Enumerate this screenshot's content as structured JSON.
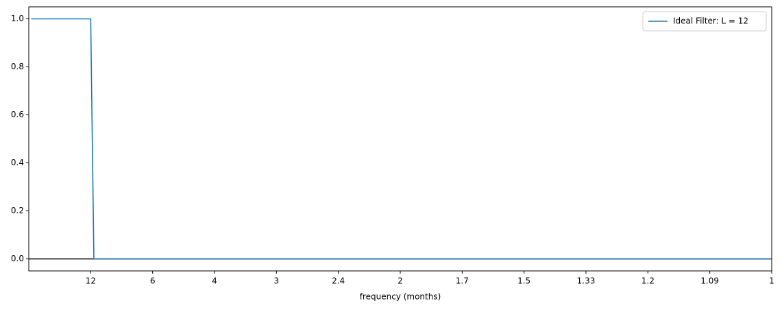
{
  "chart_data": {
    "type": "line",
    "x_label": "frequency (months)",
    "xlim": [
      0,
      1
    ],
    "ylim": [
      -0.05,
      1.05
    ],
    "xticks": [
      {
        "value": 0.08333,
        "label": "12"
      },
      {
        "value": 0.16667,
        "label": "6"
      },
      {
        "value": 0.25,
        "label": "4"
      },
      {
        "value": 0.33333,
        "label": "3"
      },
      {
        "value": 0.41667,
        "label": "2.4"
      },
      {
        "value": 0.5,
        "label": "2"
      },
      {
        "value": 0.58333,
        "label": "1.7"
      },
      {
        "value": 0.66667,
        "label": "1.5"
      },
      {
        "value": 0.75,
        "label": "1.33"
      },
      {
        "value": 0.83333,
        "label": "1.2"
      },
      {
        "value": 0.91667,
        "label": "1.09"
      },
      {
        "value": 1,
        "label": "1"
      }
    ],
    "yticks": [
      {
        "value": 0,
        "label": "0.0"
      },
      {
        "value": 0.2,
        "label": "0.2"
      },
      {
        "value": 0.4,
        "label": "0.4"
      },
      {
        "value": 0.6,
        "label": "0.6"
      },
      {
        "value": 0.8,
        "label": "0.8"
      },
      {
        "value": 1,
        "label": "1.0"
      }
    ],
    "hline": 0,
    "hline_color": "#000000",
    "legend": "upper right",
    "series": [
      {
        "name": "Ideal Filter: L = 12",
        "color": "#1f77b4",
        "x": [
          0.003,
          0.08333,
          0.0876,
          1
        ],
        "values": [
          1,
          1,
          0,
          0
        ]
      }
    ]
  }
}
